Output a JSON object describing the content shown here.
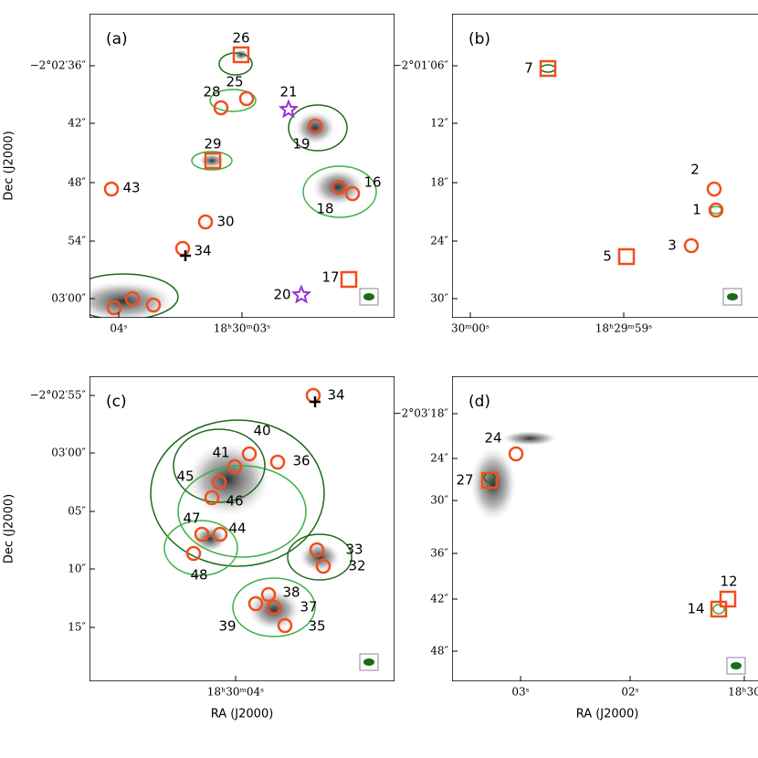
{
  "panels": [
    {
      "label": "(a)",
      "ylabel": "Dec (J2000)",
      "yticks": [
        "−2°02′36″",
        "42″",
        "48″",
        "54″",
        "03′00″"
      ],
      "xticks": [
        "04ˢ",
        "18ʰ30ᵐ03ˢ"
      ],
      "sources": [
        "26",
        "25",
        "28",
        "21",
        "19",
        "29",
        "43",
        "16",
        "18",
        "30",
        "34",
        "17",
        "20"
      ]
    },
    {
      "label": "(b)",
      "yticks": [
        "−2°01′06″",
        "12″",
        "18″",
        "24″",
        "30″"
      ],
      "xticks": [
        "30ᵐ00ˢ",
        "18ʰ29ᵐ59ˢ"
      ],
      "sources": [
        "7",
        "2",
        "1",
        "3",
        "5"
      ]
    },
    {
      "label": "(c)",
      "ylabel": "Dec (J2000)",
      "xlabel": "RA (J2000)",
      "yticks": [
        "−2°02′55″",
        "03′00″",
        "05″",
        "10″",
        "15″"
      ],
      "xticks": [
        "18ʰ30ᵐ04ˢ"
      ],
      "sources": [
        "34",
        "40",
        "36",
        "41",
        "45",
        "46",
        "47",
        "44",
        "48",
        "33",
        "32",
        "38",
        "37",
        "39",
        "35"
      ]
    },
    {
      "label": "(d)",
      "xlabel": "RA (J2000)",
      "yticks": [
        "−2°03′18″",
        "24″",
        "30″",
        "36″",
        "42″",
        "48″"
      ],
      "xticks": [
        "03ˢ",
        "02ˢ",
        "18ʰ30"
      ],
      "sources": [
        "24",
        "27",
        "12",
        "14"
      ]
    }
  ]
}
